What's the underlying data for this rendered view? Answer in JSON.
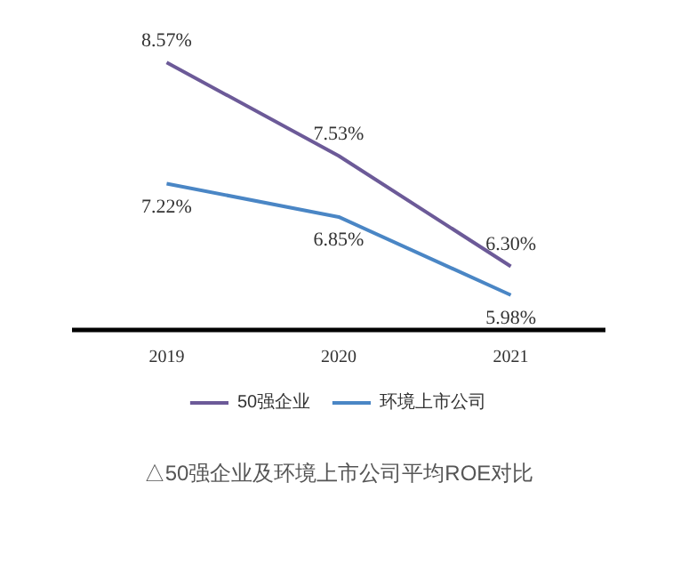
{
  "chart_data": {
    "type": "line",
    "title": "△50强企业及环境上市公司平均ROE对比",
    "categories": [
      "2019",
      "2020",
      "2021"
    ],
    "series": [
      {
        "name": "50强企业",
        "color": "#6c5a98",
        "values": [
          8.57,
          7.53,
          6.3
        ],
        "value_labels": [
          "8.57%",
          "7.53%",
          "6.30%"
        ]
      },
      {
        "name": "环境上市公司",
        "color": "#4a86c5",
        "values": [
          7.22,
          6.85,
          5.98
        ],
        "value_labels": [
          "7.22%",
          "6.85%",
          "5.98%"
        ]
      }
    ],
    "tick_labels": "x",
    "legend": "bottom"
  }
}
